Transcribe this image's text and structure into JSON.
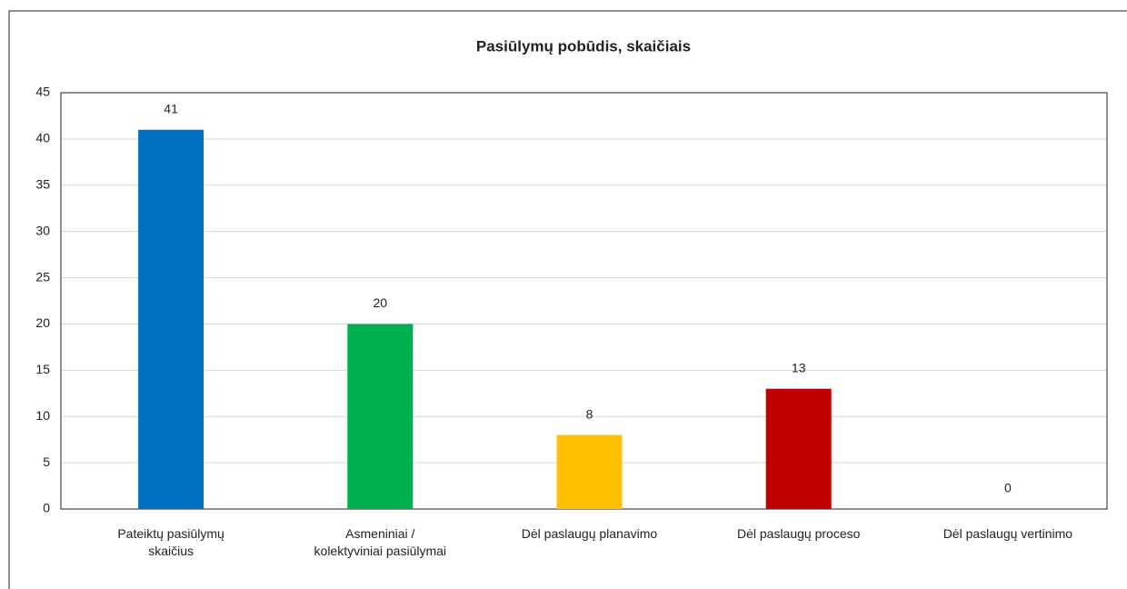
{
  "chart_data": {
    "type": "bar",
    "title": "Pasiūlymų pobūdis, skaičiais",
    "categories": [
      "Pateiktų pasiūlymų skaičius",
      "Asmeniniai / kolektyviniai pasiūlymai",
      "Dėl paslaugų planavimo",
      "Dėl paslaugų proceso",
      "Dėl paslaugų vertinimo"
    ],
    "values": [
      41,
      20,
      8,
      13,
      0
    ],
    "colors": [
      "#0070c0",
      "#00b050",
      "#ffc000",
      "#c00000",
      "#7030a0"
    ],
    "ylim": [
      0,
      45
    ],
    "yticks": [
      0,
      5,
      10,
      15,
      20,
      25,
      30,
      35,
      40,
      45
    ],
    "grid": true
  }
}
